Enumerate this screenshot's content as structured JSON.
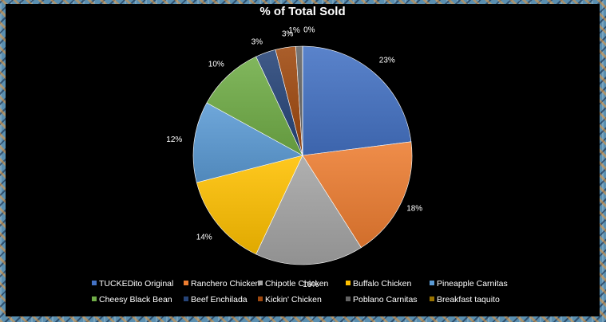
{
  "chart_data": {
    "type": "pie",
    "title": "% of Total Sold",
    "categories": [
      "TUCKEDito Original",
      "Ranchero Chicken",
      "Chipotle Chicken",
      "Buffalo Chicken",
      "Pineapple Carnitas",
      "Cheesy Black Bean",
      "Beef Enchilada",
      "Kickin' Chicken",
      "Poblano Carnitas",
      "Breakfast taquito"
    ],
    "values": [
      23,
      18,
      16,
      14,
      12,
      10,
      3,
      3,
      1,
      0
    ],
    "labels": [
      "23%",
      "18%",
      "16%",
      "14%",
      "12%",
      "10%",
      "3%",
      "3%",
      "1%",
      "0%"
    ],
    "colors": [
      "#4472c4",
      "#ed7d31",
      "#a5a5a5",
      "#ffc000",
      "#5b9bd5",
      "#70ad47",
      "#264478",
      "#9e480e",
      "#636363",
      "#997300"
    ],
    "legend_position": "bottom"
  }
}
